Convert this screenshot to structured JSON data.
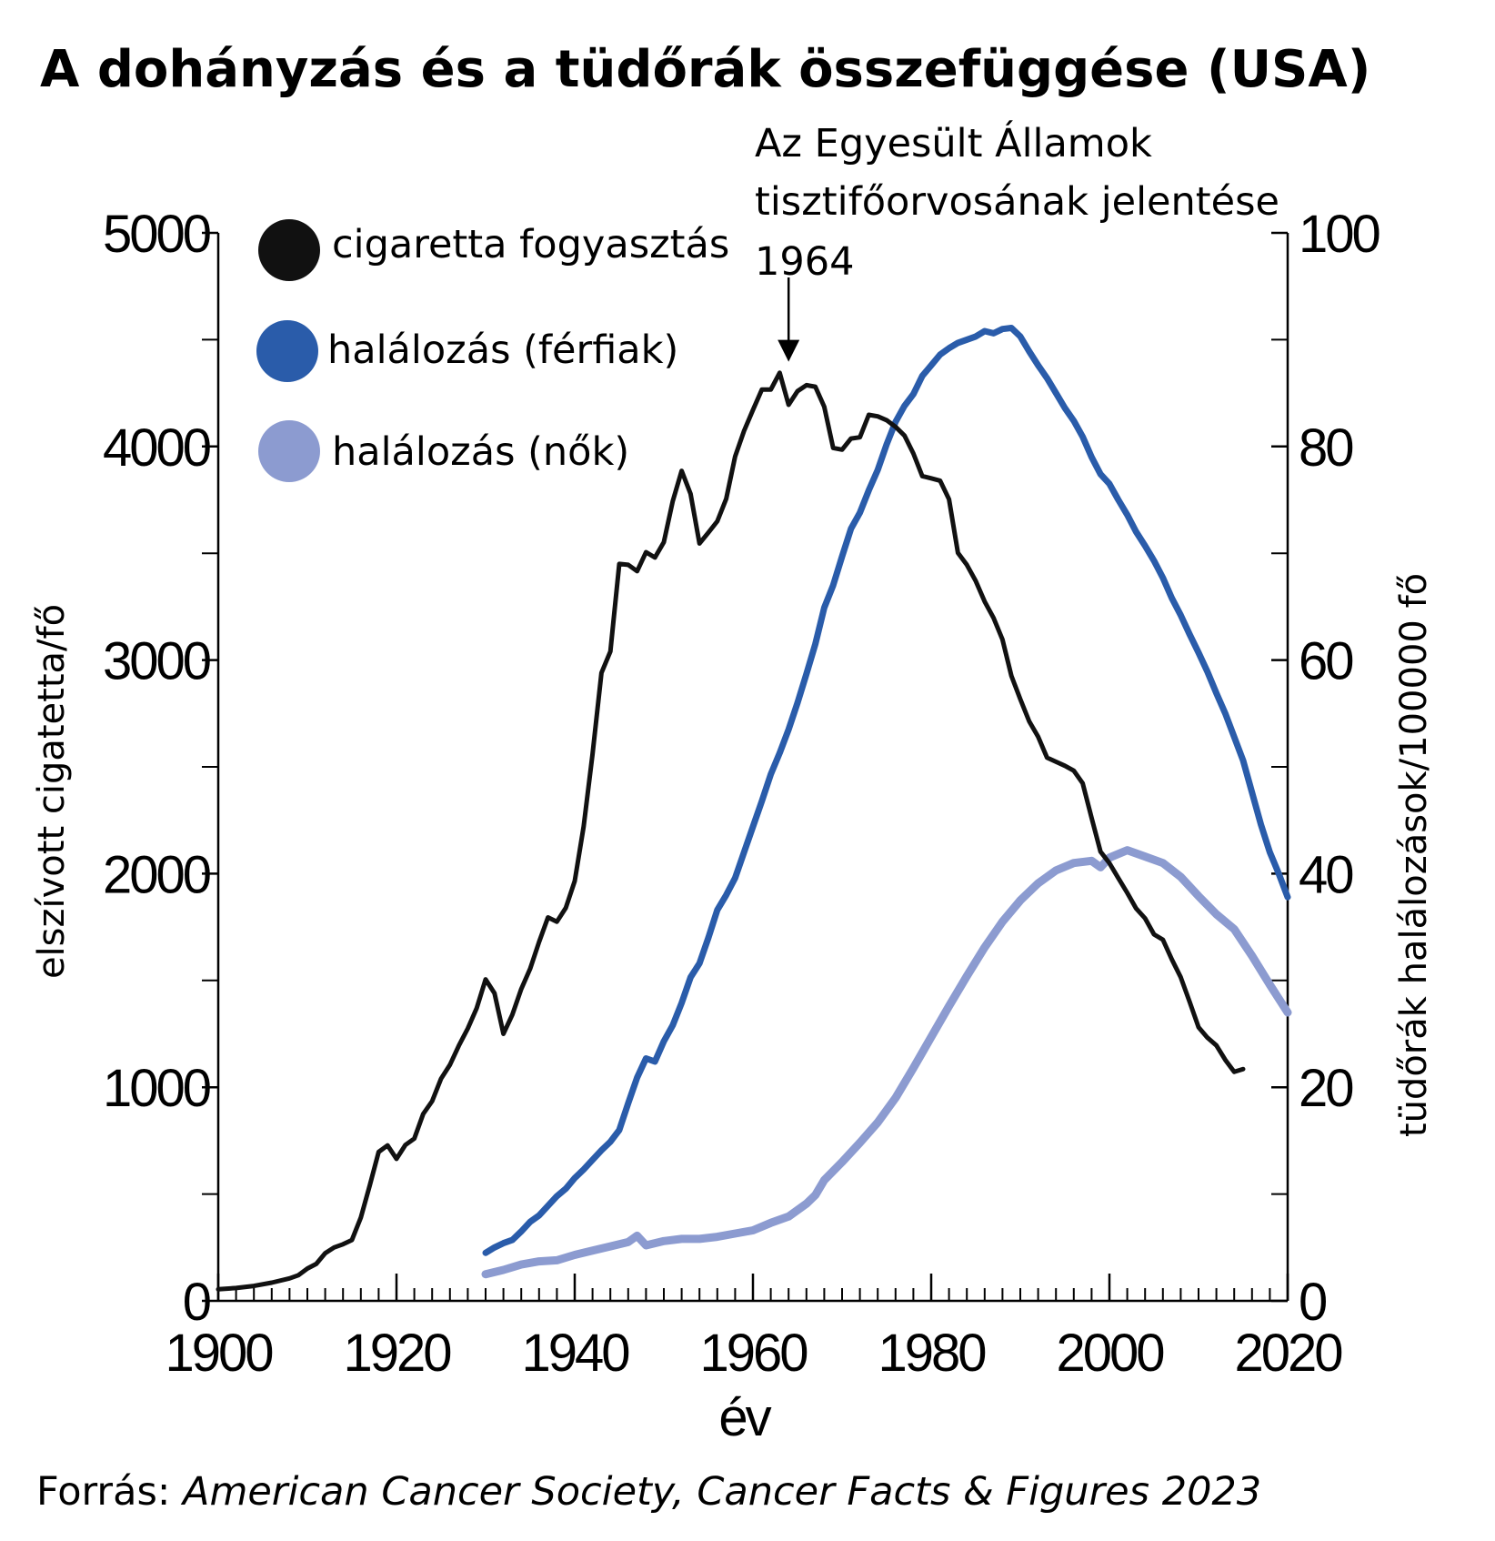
{
  "title": "A dohányzás és a tüdőrák összefüggése (USA)",
  "annotation": {
    "lines": [
      "Az Egyesült Államok",
      "tisztifőorvosának jelentése",
      "1964"
    ],
    "year": 1964,
    "y_value": 4380
  },
  "legend": {
    "position": "top-left",
    "items": [
      {
        "label": "cigaretta fogyasztás",
        "color": "#111111"
      },
      {
        "label": "halálozás (férfiak)",
        "color": "#2a5caa"
      },
      {
        "label": "halálozás (nők)",
        "color": "#8c9bd0"
      }
    ]
  },
  "x_axis_label": "év",
  "left_axis_label": "elszívott cigatetta/fő",
  "right_axis_label": "tüdőrák halálozások/100000 fő",
  "source": {
    "prefix": "Forrás: ",
    "text": "American Cancer Society, Cancer Facts & Figures 2023"
  },
  "chart_data": {
    "type": "line",
    "title": "A dohányzás és a tüdőrák összefüggése (USA)",
    "xlabel": "év",
    "ylabel_left": "elszívott cigatetta/fő",
    "ylabel_right": "tüdőrák halálozások/100000 fő",
    "xlim": [
      1900,
      2020
    ],
    "ylim_left": [
      0,
      5000
    ],
    "ylim_right": [
      0,
      100
    ],
    "x_ticks": [
      1900,
      1920,
      1940,
      1960,
      1980,
      2000,
      2020
    ],
    "y_left_ticks": [
      0,
      1000,
      2000,
      3000,
      4000,
      5000
    ],
    "y_right_ticks": [
      0,
      20,
      40,
      60,
      80,
      100
    ],
    "grid": false,
    "legend_position": "top-left",
    "series": [
      {
        "name": "cigaretta fogyasztás",
        "axis": "left",
        "color": "#111111",
        "points": [
          [
            1900,
            54
          ],
          [
            1902,
            60
          ],
          [
            1904,
            70
          ],
          [
            1906,
            85
          ],
          [
            1908,
            105
          ],
          [
            1909,
            120
          ],
          [
            1910,
            151
          ],
          [
            1911,
            173
          ],
          [
            1912,
            223
          ],
          [
            1913,
            250
          ],
          [
            1914,
            265
          ],
          [
            1915,
            285
          ],
          [
            1916,
            390
          ],
          [
            1917,
            540
          ],
          [
            1918,
            697
          ],
          [
            1919,
            728
          ],
          [
            1920,
            665
          ],
          [
            1921,
            730
          ],
          [
            1922,
            760
          ],
          [
            1923,
            875
          ],
          [
            1924,
            935
          ],
          [
            1925,
            1040
          ],
          [
            1926,
            1105
          ],
          [
            1927,
            1195
          ],
          [
            1928,
            1275
          ],
          [
            1929,
            1370
          ],
          [
            1930,
            1505
          ],
          [
            1931,
            1440
          ],
          [
            1932,
            1250
          ],
          [
            1933,
            1340
          ],
          [
            1934,
            1460
          ],
          [
            1935,
            1555
          ],
          [
            1936,
            1680
          ],
          [
            1937,
            1795
          ],
          [
            1938,
            1775
          ],
          [
            1939,
            1840
          ],
          [
            1940,
            1965
          ],
          [
            1941,
            2220
          ],
          [
            1942,
            2560
          ],
          [
            1943,
            2940
          ],
          [
            1944,
            3040
          ],
          [
            1945,
            3450
          ],
          [
            1946,
            3446
          ],
          [
            1947,
            3416
          ],
          [
            1948,
            3505
          ],
          [
            1949,
            3480
          ],
          [
            1950,
            3552
          ],
          [
            1951,
            3744
          ],
          [
            1952,
            3886
          ],
          [
            1953,
            3778
          ],
          [
            1954,
            3546
          ],
          [
            1955,
            3597
          ],
          [
            1956,
            3650
          ],
          [
            1957,
            3755
          ],
          [
            1958,
            3953
          ],
          [
            1959,
            4073
          ],
          [
            1960,
            4171
          ],
          [
            1961,
            4266
          ],
          [
            1962,
            4266
          ],
          [
            1963,
            4345
          ],
          [
            1964,
            4195
          ],
          [
            1965,
            4259
          ],
          [
            1966,
            4287
          ],
          [
            1967,
            4280
          ],
          [
            1968,
            4186
          ],
          [
            1969,
            3993
          ],
          [
            1970,
            3985
          ],
          [
            1971,
            4037
          ],
          [
            1972,
            4043
          ],
          [
            1973,
            4148
          ],
          [
            1974,
            4141
          ],
          [
            1975,
            4123
          ],
          [
            1976,
            4092
          ],
          [
            1977,
            4051
          ],
          [
            1978,
            3967
          ],
          [
            1979,
            3861
          ],
          [
            1980,
            3851
          ],
          [
            1981,
            3840
          ],
          [
            1982,
            3753
          ],
          [
            1983,
            3502
          ],
          [
            1984,
            3446
          ],
          [
            1985,
            3370
          ],
          [
            1986,
            3274
          ],
          [
            1987,
            3197
          ],
          [
            1988,
            3096
          ],
          [
            1989,
            2926
          ],
          [
            1990,
            2817
          ],
          [
            1991,
            2713
          ],
          [
            1992,
            2641
          ],
          [
            1993,
            2543
          ],
          [
            1994,
            2524
          ],
          [
            1995,
            2505
          ],
          [
            1996,
            2482
          ],
          [
            1997,
            2423
          ],
          [
            1998,
            2261
          ],
          [
            1999,
            2103
          ],
          [
            2000,
            2049
          ],
          [
            2001,
            1979
          ],
          [
            2002,
            1910
          ],
          [
            2003,
            1837
          ],
          [
            2004,
            1791
          ],
          [
            2005,
            1716
          ],
          [
            2006,
            1691
          ],
          [
            2007,
            1599
          ],
          [
            2008,
            1515
          ],
          [
            2009,
            1400
          ],
          [
            2010,
            1281
          ],
          [
            2011,
            1232
          ],
          [
            2012,
            1196
          ],
          [
            2013,
            1128
          ],
          [
            2014,
            1072
          ],
          [
            2015,
            1085
          ]
        ]
      },
      {
        "name": "halálozás (férfiak)",
        "axis": "right",
        "color": "#2a5caa",
        "points": [
          [
            1930,
            4.5
          ],
          [
            1931,
            5.0
          ],
          [
            1932,
            5.4
          ],
          [
            1933,
            5.7
          ],
          [
            1934,
            6.5
          ],
          [
            1935,
            7.4
          ],
          [
            1936,
            8.0
          ],
          [
            1937,
            8.9
          ],
          [
            1938,
            9.8
          ],
          [
            1939,
            10.5
          ],
          [
            1940,
            11.5
          ],
          [
            1941,
            12.3
          ],
          [
            1942,
            13.2
          ],
          [
            1943,
            14.1
          ],
          [
            1944,
            14.9
          ],
          [
            1945,
            16.0
          ],
          [
            1946,
            18.5
          ],
          [
            1947,
            20.9
          ],
          [
            1948,
            22.7
          ],
          [
            1949,
            22.4
          ],
          [
            1950,
            24.3
          ],
          [
            1951,
            25.8
          ],
          [
            1952,
            27.9
          ],
          [
            1953,
            30.3
          ],
          [
            1954,
            31.6
          ],
          [
            1955,
            34.0
          ],
          [
            1956,
            36.6
          ],
          [
            1957,
            38.0
          ],
          [
            1958,
            39.6
          ],
          [
            1959,
            42.0
          ],
          [
            1960,
            44.4
          ],
          [
            1961,
            46.8
          ],
          [
            1962,
            49.3
          ],
          [
            1963,
            51.3
          ],
          [
            1964,
            53.5
          ],
          [
            1965,
            56.0
          ],
          [
            1966,
            58.7
          ],
          [
            1967,
            61.5
          ],
          [
            1968,
            64.9
          ],
          [
            1969,
            67.0
          ],
          [
            1970,
            69.7
          ],
          [
            1971,
            72.3
          ],
          [
            1972,
            73.8
          ],
          [
            1973,
            75.9
          ],
          [
            1974,
            77.8
          ],
          [
            1975,
            80.2
          ],
          [
            1976,
            82.3
          ],
          [
            1977,
            83.8
          ],
          [
            1978,
            84.9
          ],
          [
            1979,
            86.6
          ],
          [
            1980,
            87.6
          ],
          [
            1981,
            88.6
          ],
          [
            1982,
            89.2
          ],
          [
            1983,
            89.7
          ],
          [
            1984,
            90.0
          ],
          [
            1985,
            90.3
          ],
          [
            1986,
            90.8
          ],
          [
            1987,
            90.6
          ],
          [
            1988,
            91.0
          ],
          [
            1989,
            91.1
          ],
          [
            1990,
            90.3
          ],
          [
            1991,
            88.9
          ],
          [
            1992,
            87.6
          ],
          [
            1993,
            86.4
          ],
          [
            1994,
            85.0
          ],
          [
            1995,
            83.6
          ],
          [
            1996,
            82.4
          ],
          [
            1997,
            80.9
          ],
          [
            1998,
            79.0
          ],
          [
            1999,
            77.4
          ],
          [
            2000,
            76.5
          ],
          [
            2001,
            75.0
          ],
          [
            2002,
            73.6
          ],
          [
            2003,
            72.0
          ],
          [
            2004,
            70.7
          ],
          [
            2005,
            69.3
          ],
          [
            2006,
            67.7
          ],
          [
            2007,
            65.8
          ],
          [
            2008,
            64.2
          ],
          [
            2009,
            62.4
          ],
          [
            2010,
            60.7
          ],
          [
            2011,
            58.9
          ],
          [
            2012,
            56.9
          ],
          [
            2013,
            55.0
          ],
          [
            2014,
            52.8
          ],
          [
            2015,
            50.6
          ],
          [
            2016,
            47.6
          ],
          [
            2017,
            44.6
          ],
          [
            2018,
            42.0
          ],
          [
            2019,
            40.0
          ],
          [
            2020,
            37.8
          ]
        ]
      },
      {
        "name": "halálozás (nők)",
        "axis": "right",
        "color": "#8c9bd0",
        "points": [
          [
            1930,
            2.5
          ],
          [
            1932,
            2.9
          ],
          [
            1934,
            3.4
          ],
          [
            1936,
            3.7
          ],
          [
            1938,
            3.8
          ],
          [
            1940,
            4.3
          ],
          [
            1942,
            4.7
          ],
          [
            1944,
            5.1
          ],
          [
            1946,
            5.5
          ],
          [
            1947,
            6.1
          ],
          [
            1948,
            5.2
          ],
          [
            1950,
            5.6
          ],
          [
            1952,
            5.8
          ],
          [
            1954,
            5.8
          ],
          [
            1956,
            6.0
          ],
          [
            1958,
            6.3
          ],
          [
            1960,
            6.6
          ],
          [
            1962,
            7.3
          ],
          [
            1964,
            7.9
          ],
          [
            1966,
            9.1
          ],
          [
            1967,
            9.9
          ],
          [
            1968,
            11.3
          ],
          [
            1970,
            13.0
          ],
          [
            1972,
            14.8
          ],
          [
            1974,
            16.7
          ],
          [
            1976,
            19.0
          ],
          [
            1978,
            21.8
          ],
          [
            1980,
            24.7
          ],
          [
            1982,
            27.6
          ],
          [
            1984,
            30.4
          ],
          [
            1986,
            33.1
          ],
          [
            1988,
            35.5
          ],
          [
            1990,
            37.5
          ],
          [
            1992,
            39.1
          ],
          [
            1994,
            40.3
          ],
          [
            1996,
            41.0
          ],
          [
            1998,
            41.2
          ],
          [
            1999,
            40.6
          ],
          [
            2000,
            41.5
          ],
          [
            2002,
            42.2
          ],
          [
            2004,
            41.6
          ],
          [
            2006,
            41.0
          ],
          [
            2008,
            39.7
          ],
          [
            2010,
            37.9
          ],
          [
            2012,
            36.2
          ],
          [
            2014,
            34.8
          ],
          [
            2016,
            32.3
          ],
          [
            2018,
            29.6
          ],
          [
            2020,
            27.0
          ]
        ]
      }
    ]
  }
}
